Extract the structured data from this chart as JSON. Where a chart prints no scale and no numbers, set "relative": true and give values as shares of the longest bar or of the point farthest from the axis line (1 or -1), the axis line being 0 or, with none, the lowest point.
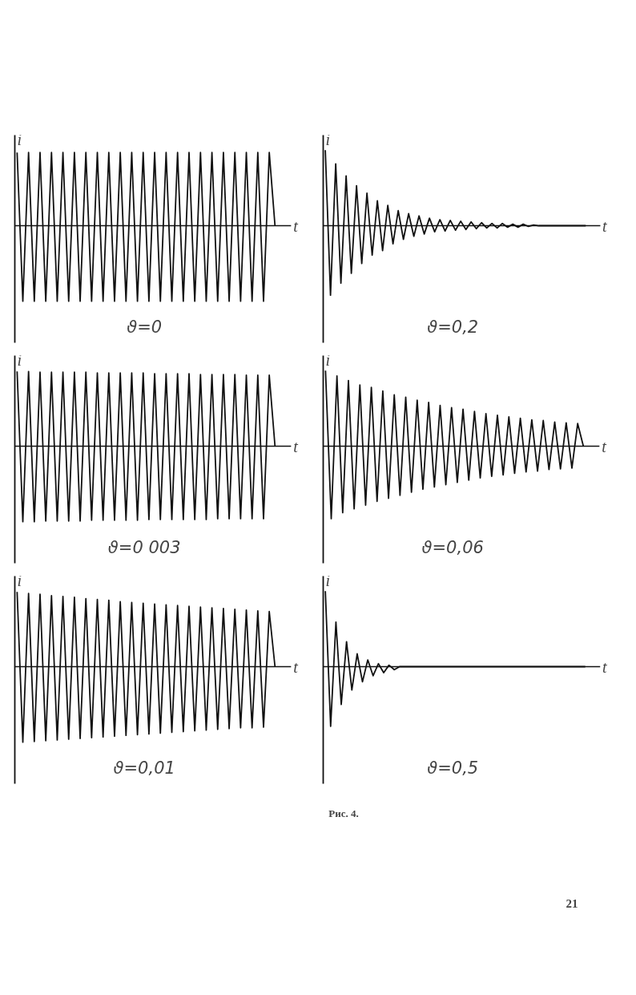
{
  "chart_data": [
    {
      "type": "line",
      "relative": true,
      "xlabel": "t",
      "ylabel": "i",
      "annotations": [
        "ϑ=0"
      ],
      "categories": [
        null,
        null,
        null,
        null,
        null,
        null,
        null,
        null,
        null,
        null,
        null,
        null,
        null,
        null,
        null,
        null,
        null,
        null,
        null,
        null,
        null,
        null,
        null,
        null,
        null,
        null,
        null,
        null,
        null,
        null,
        null,
        null,
        null,
        null,
        null,
        null,
        null,
        null,
        null,
        null,
        null,
        null,
        null,
        null,
        null,
        null
      ],
      "series": [
        {
          "color": "#111111",
          "values": [
            0.97,
            -1,
            0.97,
            -1,
            0.97,
            -1,
            0.97,
            -1,
            0.97,
            -1,
            0.97,
            -1,
            0.97,
            -1,
            0.97,
            -1,
            0.97,
            -1,
            0.97,
            -1,
            0.97,
            -1,
            0.97,
            -1,
            0.97,
            -1,
            0.97,
            -1,
            0.97,
            -1,
            0.97,
            -1,
            0.97,
            -1,
            0.97,
            -1,
            0.97,
            -1,
            0.97,
            -1,
            0.97,
            -1,
            0.97,
            -1,
            0.97,
            0
          ]
        }
      ]
    },
    {
      "type": "line",
      "relative": true,
      "xlabel": "t",
      "ylabel": "i",
      "annotations": [
        "ϑ=0,2"
      ],
      "categories": [
        null,
        null,
        null,
        null,
        null,
        null,
        null,
        null,
        null,
        null,
        null,
        null,
        null,
        null,
        null,
        null,
        null,
        null,
        null,
        null,
        null,
        null,
        null,
        null,
        null,
        null,
        null,
        null,
        null,
        null,
        null,
        null,
        null,
        null,
        null,
        null,
        null,
        null,
        null,
        null,
        null,
        null,
        null,
        null,
        null,
        null,
        null,
        null,
        null,
        null,
        null
      ],
      "series": [
        {
          "color": "#111111",
          "values": [
            1,
            -0.92,
            0.82,
            -0.76,
            0.66,
            -0.63,
            0.53,
            -0.5,
            0.43,
            -0.39,
            0.33,
            -0.33,
            0.27,
            -0.24,
            0.2,
            -0.18,
            0.16,
            -0.14,
            0.13,
            -0.11,
            0.1,
            -0.08,
            0.08,
            -0.07,
            0.07,
            -0.06,
            0.06,
            -0.05,
            0.05,
            -0.04,
            0.04,
            -0.03,
            0.03,
            -0.03,
            0.03,
            -0.02,
            0.02,
            -0.02,
            0.02,
            -0.01,
            0.01,
            0,
            0,
            0,
            0,
            0,
            0,
            0,
            0,
            0,
            0
          ]
        }
      ]
    },
    {
      "type": "line",
      "relative": true,
      "xlabel": "t",
      "ylabel": "i",
      "annotations": [
        "ϑ=0 003"
      ],
      "categories": [
        null,
        null,
        null,
        null,
        null,
        null,
        null,
        null,
        null,
        null,
        null,
        null,
        null,
        null,
        null,
        null,
        null,
        null,
        null,
        null,
        null,
        null,
        null,
        null,
        null,
        null,
        null,
        null,
        null,
        null,
        null,
        null,
        null,
        null,
        null,
        null,
        null,
        null,
        null,
        null,
        null,
        null,
        null,
        null,
        null,
        null
      ],
      "series": [
        {
          "color": "#111111",
          "values": [
            0.99,
            -1,
            0.99,
            -1,
            0.98,
            -0.99,
            0.98,
            -0.99,
            0.98,
            -0.99,
            0.98,
            -0.99,
            0.98,
            -0.98,
            0.97,
            -0.98,
            0.97,
            -0.98,
            0.97,
            -0.98,
            0.97,
            -0.98,
            0.97,
            -0.97,
            0.96,
            -0.97,
            0.96,
            -0.97,
            0.96,
            -0.97,
            0.96,
            -0.97,
            0.95,
            -0.97,
            0.95,
            -0.96,
            0.95,
            -0.96,
            0.95,
            -0.96,
            0.94,
            -0.96,
            0.94,
            -0.96,
            0.94,
            0
          ]
        }
      ]
    },
    {
      "type": "line",
      "relative": true,
      "xlabel": "t",
      "ylabel": "i",
      "annotations": [
        "ϑ=0,06"
      ],
      "categories": [
        null,
        null,
        null,
        null,
        null,
        null,
        null,
        null,
        null,
        null,
        null,
        null,
        null,
        null,
        null,
        null,
        null,
        null,
        null,
        null,
        null,
        null,
        null,
        null,
        null,
        null,
        null,
        null,
        null,
        null,
        null,
        null,
        null,
        null,
        null,
        null,
        null,
        null,
        null,
        null,
        null,
        null,
        null,
        null,
        null,
        null
      ],
      "series": [
        {
          "color": "#111111",
          "values": [
            1,
            -0.96,
            0.93,
            -0.88,
            0.87,
            -0.83,
            0.81,
            -0.78,
            0.78,
            -0.73,
            0.73,
            -0.69,
            0.68,
            -0.65,
            0.65,
            -0.61,
            0.61,
            -0.57,
            0.58,
            -0.54,
            0.54,
            -0.51,
            0.51,
            -0.48,
            0.49,
            -0.45,
            0.46,
            -0.42,
            0.43,
            -0.4,
            0.41,
            -0.38,
            0.39,
            -0.36,
            0.37,
            -0.34,
            0.35,
            -0.33,
            0.34,
            -0.31,
            0.32,
            -0.3,
            0.31,
            -0.29,
            0.3,
            0
          ]
        }
      ]
    },
    {
      "type": "line",
      "relative": true,
      "xlabel": "t",
      "ylabel": "i",
      "annotations": [
        "ϑ=0,01"
      ],
      "categories": [
        null,
        null,
        null,
        null,
        null,
        null,
        null,
        null,
        null,
        null,
        null,
        null,
        null,
        null,
        null,
        null,
        null,
        null,
        null,
        null,
        null,
        null,
        null,
        null,
        null,
        null,
        null,
        null,
        null,
        null,
        null,
        null,
        null,
        null,
        null,
        null,
        null,
        null,
        null,
        null,
        null,
        null,
        null,
        null,
        null,
        null
      ],
      "series": [
        {
          "color": "#111111",
          "values": [
            0.99,
            -1,
            0.97,
            -0.99,
            0.96,
            -0.98,
            0.94,
            -0.97,
            0.93,
            -0.96,
            0.92,
            -0.95,
            0.9,
            -0.94,
            0.89,
            -0.93,
            0.88,
            -0.92,
            0.86,
            -0.91,
            0.85,
            -0.9,
            0.84,
            -0.89,
            0.83,
            -0.88,
            0.82,
            -0.87,
            0.81,
            -0.86,
            0.8,
            -0.85,
            0.79,
            -0.84,
            0.78,
            -0.83,
            0.77,
            -0.82,
            0.76,
            -0.81,
            0.75,
            -0.81,
            0.74,
            -0.8,
            0.73,
            0
          ]
        }
      ]
    },
    {
      "type": "line",
      "relative": true,
      "xlabel": "t",
      "ylabel": "i",
      "annotations": [
        "ϑ=0,5"
      ],
      "categories": [
        null,
        null,
        null,
        null,
        null,
        null,
        null,
        null,
        null,
        null,
        null,
        null,
        null,
        null,
        null,
        null,
        null,
        null,
        null,
        null,
        null,
        null,
        null,
        null,
        null,
        null,
        null,
        null,
        null,
        null,
        null,
        null,
        null,
        null,
        null,
        null,
        null,
        null,
        null,
        null,
        null,
        null,
        null,
        null,
        null,
        null,
        null,
        null,
        null,
        null
      ],
      "series": [
        {
          "color": "#111111",
          "values": [
            1,
            -0.79,
            0.59,
            -0.5,
            0.33,
            -0.31,
            0.17,
            -0.2,
            0.09,
            -0.12,
            0.04,
            -0.08,
            0.02,
            -0.04,
            0,
            0,
            0,
            0,
            0,
            0,
            0,
            0,
            0,
            0,
            0,
            0,
            0,
            0,
            0,
            0,
            0,
            0,
            0,
            0,
            0,
            0,
            0,
            0,
            0,
            0,
            0,
            0,
            0,
            0,
            0,
            0,
            0,
            0,
            0,
            0
          ]
        }
      ]
    },
    {
      "type": "other",
      "annotations": [
        "Рис. 4.",
        "21"
      ]
    }
  ]
}
